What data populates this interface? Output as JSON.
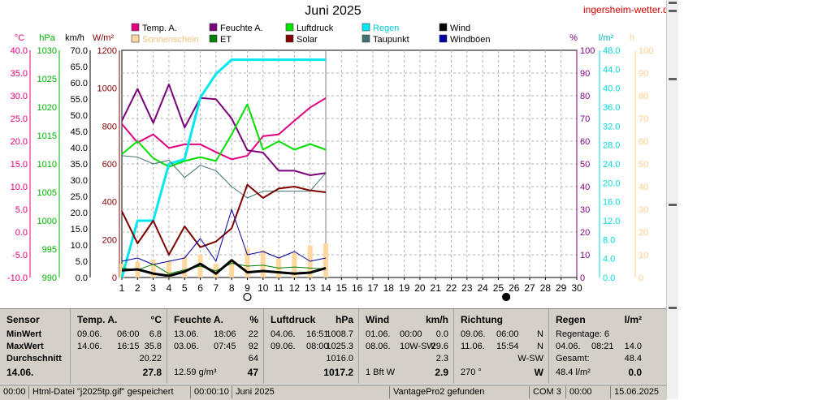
{
  "title": "Juni 2025",
  "site": "ingersheim-wetter.de",
  "legend": [
    {
      "label": "Temp. A.",
      "color": "#e0007f"
    },
    {
      "label": "Feuchte A.",
      "color": "#7a007a"
    },
    {
      "label": "Luftdruck",
      "color": "#00e000"
    },
    {
      "label": "Regen",
      "color": "#00e8f0"
    },
    {
      "label": "Wind",
      "color": "#000000"
    },
    {
      "label": "Sonnenschein",
      "color": "#ffd8a0"
    },
    {
      "label": "ET",
      "color": "#008000"
    },
    {
      "label": "Solar",
      "color": "#800000"
    },
    {
      "label": "Taupunkt",
      "color": "#407070"
    },
    {
      "label": "Windböen",
      "color": "#0000a0"
    }
  ],
  "axis_units": {
    "temp": "°C",
    "pressure": "hPa",
    "wind": "km/h",
    "solar": "W/m²",
    "humidity": "%",
    "rain": "l/m²",
    "sun": "h"
  },
  "chart_data": {
    "type": "line",
    "x": [
      1,
      2,
      3,
      4,
      5,
      6,
      7,
      8,
      9,
      10,
      11,
      12,
      13,
      14
    ],
    "x_ticks": [
      1,
      2,
      3,
      4,
      5,
      6,
      7,
      8,
      9,
      10,
      11,
      12,
      13,
      14,
      15,
      16,
      17,
      18,
      19,
      20,
      21,
      22,
      23,
      24,
      25,
      26,
      27,
      28,
      29,
      30
    ],
    "axes": {
      "temp": {
        "ticks": [
          "40.0",
          "35.0",
          "30.0",
          "25.0",
          "20.0",
          "15.0",
          "10.0",
          "5.0",
          "0.0",
          "-5.0",
          "-10.0"
        ],
        "range": [
          -10,
          40
        ],
        "color": "#e0007f"
      },
      "pressure": {
        "ticks": [
          "1030",
          "1025",
          "1020",
          "1015",
          "1010",
          "1005",
          "1000",
          "995",
          "990"
        ],
        "range": [
          990,
          1030
        ],
        "color": "#00b000"
      },
      "wind": {
        "ticks": [
          "70.0",
          "65.0",
          "60.0",
          "55.0",
          "50.0",
          "45.0",
          "40.0",
          "35.0",
          "30.0",
          "25.0",
          "20.0",
          "15.0",
          "10.0",
          "5.0",
          "0.0"
        ],
        "range": [
          0,
          70
        ],
        "color": "#000000"
      },
      "solar": {
        "ticks": [
          "1200",
          "1000",
          "800",
          "600",
          "400",
          "200",
          "0"
        ],
        "range": [
          0,
          1200
        ],
        "color": "#800000"
      },
      "humidity": {
        "ticks": [
          "100",
          "90",
          "80",
          "70",
          "60",
          "50",
          "40",
          "30",
          "20",
          "10",
          "0"
        ],
        "range": [
          0,
          100
        ],
        "color": "#7a007a"
      },
      "rain": {
        "ticks": [
          "48.0",
          "44.0",
          "40.0",
          "36.0",
          "32.0",
          "28.0",
          "24.0",
          "20.0",
          "16.0",
          "12.0",
          "8.0",
          "4.0",
          "0.0"
        ],
        "range": [
          0,
          48
        ],
        "color": "#00d8d8"
      },
      "sun": {
        "ticks": [
          "100",
          "90",
          "80",
          "70",
          "60",
          "50",
          "40",
          "30",
          "20",
          "10",
          "0"
        ],
        "range": [
          0,
          100
        ],
        "color": "#ffcc88"
      }
    },
    "series": [
      {
        "name": "Temp. A.",
        "axis": "temp",
        "color": "#e0007f",
        "values": [
          23.8,
          19.7,
          21.5,
          18.5,
          19.3,
          19.3,
          17.6,
          16.0,
          16.8,
          21.1,
          21.5,
          24.5,
          27.4,
          29.5
        ]
      },
      {
        "name": "Feuchte A.",
        "axis": "humidity",
        "color": "#7a007a",
        "values": [
          69,
          83,
          68,
          85,
          66,
          79,
          78.5,
          70,
          56,
          55,
          47,
          47,
          45,
          46
        ]
      },
      {
        "name": "Luftdruck",
        "axis": "pressure",
        "color": "#00e000",
        "values": [
          1011.7,
          1014.0,
          1011.0,
          1009.5,
          1010.5,
          1011.2,
          1010.5,
          1015.2,
          1020.5,
          1012.5,
          1014.0,
          1012.5,
          1013.5,
          1012.5
        ]
      },
      {
        "name": "Regen",
        "axis": "rain",
        "color": "#00e8f0",
        "values": [
          0,
          12,
          12,
          24,
          25,
          38,
          43,
          46,
          46,
          46,
          46,
          46,
          46,
          46
        ]
      },
      {
        "name": "Taupunkt",
        "axis": "temp",
        "color": "#407070",
        "values": [
          16.8,
          16.5,
          15.0,
          15.8,
          12.0,
          14.7,
          13.5,
          10.0,
          7.5,
          9.0,
          9.0,
          9.0,
          9.0,
          13.0
        ]
      },
      {
        "name": "Solar",
        "axis": "solar",
        "color": "#800000",
        "values": [
          350,
          180,
          300,
          120,
          270,
          160,
          190,
          260,
          490,
          420,
          470,
          480,
          460,
          450
        ]
      },
      {
        "name": "Windböen",
        "axis": "wind",
        "color": "#0000a0",
        "values": [
          5,
          6,
          4,
          5,
          6,
          12,
          5,
          21,
          7,
          8,
          6,
          8,
          5,
          6
        ]
      },
      {
        "name": "ET",
        "axis": "solar",
        "color": "#008000",
        "values": [
          50,
          40,
          70,
          20,
          40,
          60,
          35,
          75,
          60,
          65,
          50,
          55,
          50,
          45
        ]
      },
      {
        "name": "Wind",
        "axis": "wind",
        "color": "#000000",
        "values": [
          2.2,
          2.5,
          1.2,
          0.5,
          1.8,
          4.2,
          1.2,
          5.3,
          1.6,
          2.0,
          1.6,
          1.2,
          1.5,
          2.9
        ]
      }
    ],
    "sunshine": {
      "axis": "sun",
      "color": "#ffd8a0",
      "values": [
        6,
        7,
        8,
        7,
        9,
        10,
        6,
        8,
        13,
        12,
        9,
        11,
        14,
        15
      ]
    },
    "moon_markers": [
      {
        "x": 9,
        "phase": "full"
      },
      {
        "x": 25,
        "phase": "new"
      }
    ]
  },
  "stats": {
    "sensor": {
      "header": "Sensor",
      "rows": [
        "MinWert",
        "MaxWert",
        "Durchschnitt",
        "14.06."
      ]
    },
    "temp": {
      "header": "Temp. A.",
      "unit": "°C",
      "min": [
        "09.06.",
        "06:00",
        "6.8"
      ],
      "max": [
        "14.06.",
        "16:15",
        "35.8"
      ],
      "avg": "20.22",
      "today": "27.8"
    },
    "humidity": {
      "header": "Feuchte A.",
      "unit": "%",
      "min": [
        "13.06.",
        "18:06",
        "22"
      ],
      "max": [
        "03.06.",
        "07:45",
        "92"
      ],
      "avg": "64",
      "today_extra": "12.59 g/m³",
      "today": "47"
    },
    "pressure": {
      "header": "Luftdruck",
      "unit": "hPa",
      "min": [
        "04.06.",
        "16:51",
        "1008.7"
      ],
      "max": [
        "09.06.",
        "08:00",
        "1025.3"
      ],
      "avg": "1016.0",
      "today": "1017.2"
    },
    "wind": {
      "header": "Wind",
      "unit": "km/h",
      "min": [
        "01.06.",
        "00:00",
        "0.0"
      ],
      "max": [
        "08.06.",
        "10W-SW",
        "29.6"
      ],
      "avg": "2.3",
      "today_extra": "1 Bft W",
      "today": "2.9"
    },
    "direction": {
      "header": "Richtung",
      "min": [
        "09.06.",
        "06:00",
        "N"
      ],
      "max": [
        "11.06.",
        "15:54",
        "N"
      ],
      "avg": "W-SW",
      "today_extra": "270 °",
      "today": "W"
    },
    "rain": {
      "header": "Regen",
      "unit": "l/m²",
      "min_label": "Regentage: 6",
      "max": [
        "04.06.",
        "08:21",
        "14.0"
      ],
      "avg_label": "Gesamt:",
      "avg": "48.4",
      "today_extra": "48.4 l/m²",
      "today": "0.0"
    }
  },
  "status": {
    "time": "00:00",
    "message": "Html-Datei  \"j2025tp.gif\"  gespeichert",
    "elapsed": "00:00:10",
    "period": "Juni 2025",
    "device": "VantagePro2 gefunden",
    "port": "COM 3",
    "clock": "00:00",
    "date": "15.06.2025"
  }
}
